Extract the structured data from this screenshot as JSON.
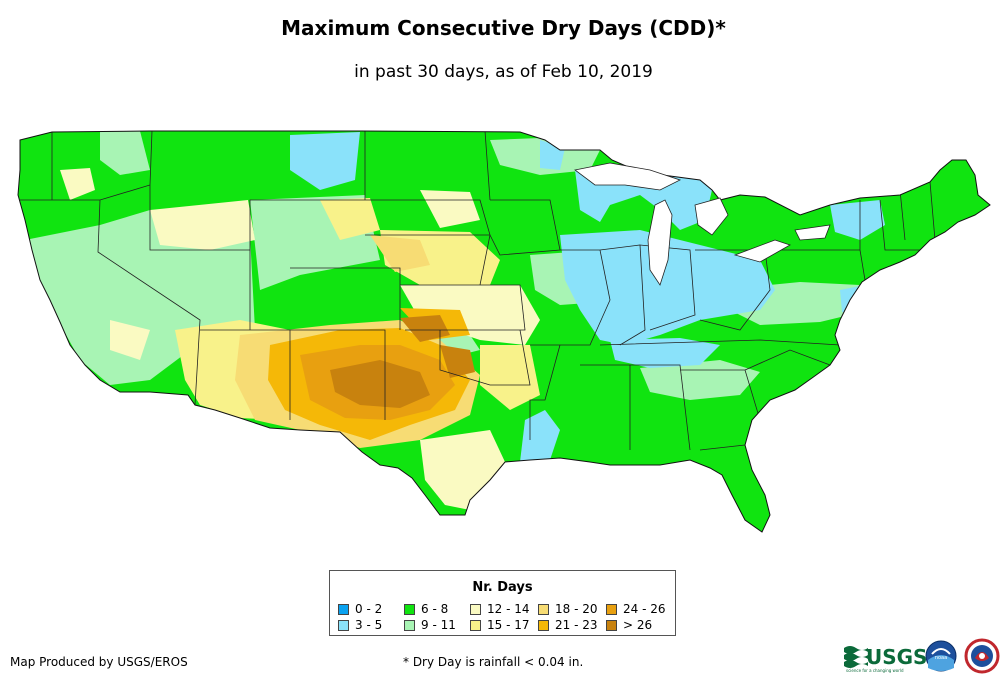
{
  "title": "Maximum Consecutive Dry Days (CDD)*",
  "subtitle": "in past 30 days, as of Feb 10, 2019",
  "legend": {
    "title": "Nr. Days",
    "items": [
      {
        "label": "0 - 2",
        "color": "#0aa2f0"
      },
      {
        "label": "3 - 5",
        "color": "#8ae2fa"
      },
      {
        "label": "6 - 8",
        "color": "#10e410"
      },
      {
        "label": "9 - 11",
        "color": "#a8f4b4"
      },
      {
        "label": "12 - 14",
        "color": "#fafac2"
      },
      {
        "label": "15 - 17",
        "color": "#f8f28a"
      },
      {
        "label": "18 - 20",
        "color": "#f7dc74"
      },
      {
        "label": "21 - 23",
        "color": "#f5b807"
      },
      {
        "label": "24 - 26",
        "color": "#e8a010"
      },
      {
        "label": "> 26",
        "color": "#c8820e"
      }
    ]
  },
  "credit": "Map Produced by USGS/EROS",
  "footnote": "* Dry Day is rainfall < 0.04 in.",
  "logos": {
    "usgs": "USGS",
    "usgs_tagline": "science for a changing world",
    "noaa": "noaa",
    "nws_icon": "national-weather-service-seal-icon"
  }
}
